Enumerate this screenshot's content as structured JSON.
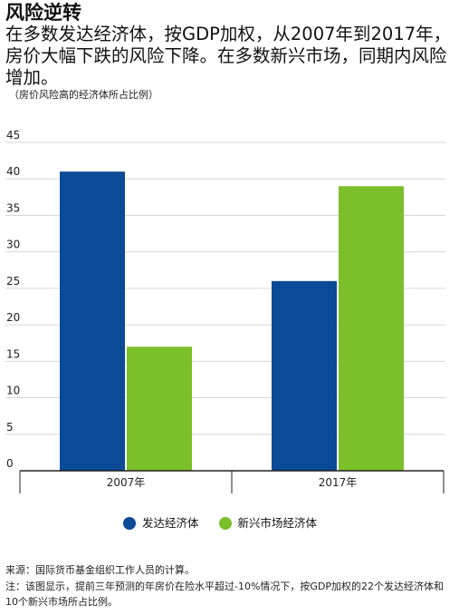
{
  "header": {
    "title": "风险逆转",
    "subtitle": "在多数发达经济体，按GDP加权，从2007年到2017年，房价大幅下跌的风险下降。在多数新兴市场，同期内风险增加。",
    "note": "（房价风险高的经济体所占比例）"
  },
  "chart_data": {
    "type": "bar",
    "categories": [
      "2007年",
      "2017年"
    ],
    "series": [
      {
        "name": "发达经济体",
        "values": [
          41,
          26
        ],
        "color": "#0b4a96"
      },
      {
        "name": "新兴市场经济体",
        "values": [
          17,
          39
        ],
        "color": "#7bbf2a"
      }
    ],
    "ylim": [
      0,
      45
    ],
    "yticks": [
      0,
      5,
      10,
      15,
      20,
      25,
      30,
      35,
      40,
      45
    ],
    "grid": true,
    "legend_position": "bottom"
  },
  "footer": {
    "source": "来源：国际货币基金组织工作人员的计算。",
    "footnote": "注：该图显示，提前三年预测的年房价在险水平超过-10%情况下，按GDP加权的22个发达经济体和10个新兴市场所占比例。"
  }
}
